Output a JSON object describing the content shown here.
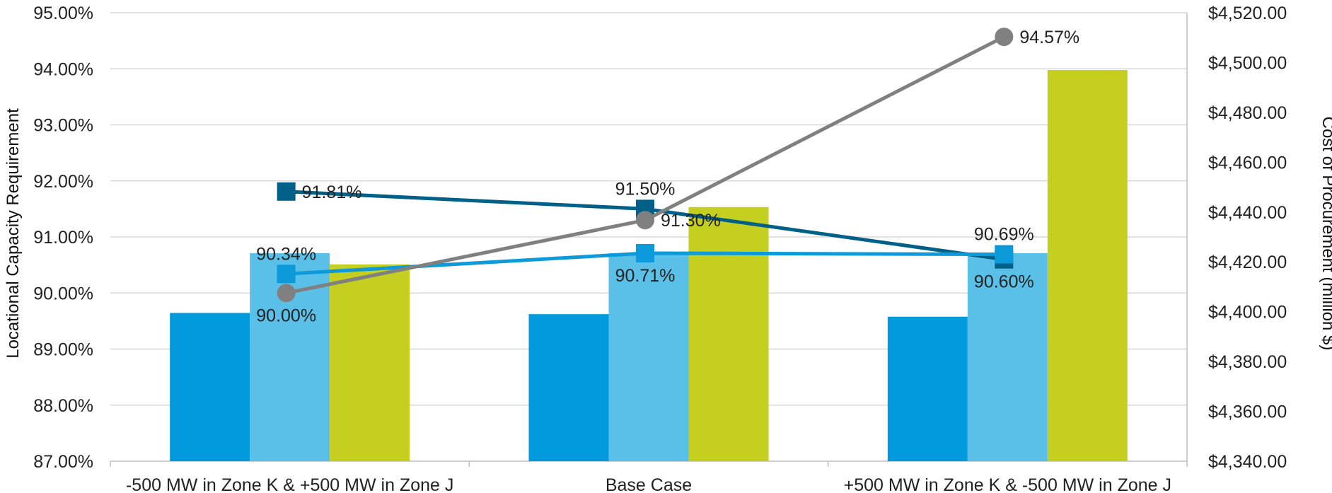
{
  "chart_data": {
    "type": "bar",
    "title": "",
    "categories": [
      "-500 MW in Zone K & +500 MW in Zone J",
      "Base Case",
      "+500 MW in Zone K & -500 MW in Zone J"
    ],
    "ylabel": "Locational Capacity Requirement",
    "y2label": "Cost of Procurement (million $)",
    "ylim": [
      0.87,
      0.95
    ],
    "y2lim": [
      4340,
      4520
    ],
    "y_ticks": [
      "87.00%",
      "88.00%",
      "89.00%",
      "90.00%",
      "91.00%",
      "92.00%",
      "93.00%",
      "94.00%",
      "95.00%"
    ],
    "y2_ticks": [
      "$4,340.00",
      "$4,360.00",
      "$4,380.00",
      "$4,400.00",
      "$4,420.00",
      "$4,440.00",
      "$4,460.00",
      "$4,480.00",
      "$4,500.00",
      "$4,520.00"
    ],
    "grid": true,
    "legend": "none",
    "bar_series": [
      {
        "axis": "secondary",
        "color": "#009ADD",
        "values": [
          4399.5,
          4399.0,
          4398.0
        ]
      },
      {
        "axis": "secondary",
        "color": "#5BC0E8",
        "values": [
          4423.5,
          4423.5,
          4423.5
        ]
      },
      {
        "axis": "secondary",
        "color": "#C5CF1F",
        "values": [
          4419.0,
          4442.0,
          4497.0
        ]
      }
    ],
    "line_series": [
      {
        "axis": "primary",
        "color": "#006088",
        "marker": "square",
        "values": [
          0.9181,
          0.915,
          0.906
        ],
        "labels": [
          "91.81%",
          "91.50%",
          "90.60%"
        ],
        "label_pos": [
          "right",
          "above",
          "below"
        ]
      },
      {
        "axis": "primary",
        "color": "#0C9ADB",
        "marker": "square",
        "values": [
          0.9034,
          0.9071,
          0.9069
        ],
        "labels": [
          "90.34%",
          "90.71%",
          "90.69%"
        ],
        "label_pos": [
          "above",
          "below",
          "above"
        ]
      },
      {
        "axis": "primary",
        "color": "#808080",
        "marker": "circle",
        "values": [
          0.9,
          0.913,
          0.9457
        ],
        "labels": [
          "90.00%",
          "91.30%",
          "94.57%"
        ],
        "label_pos": [
          "below",
          "right",
          "right"
        ]
      }
    ]
  }
}
